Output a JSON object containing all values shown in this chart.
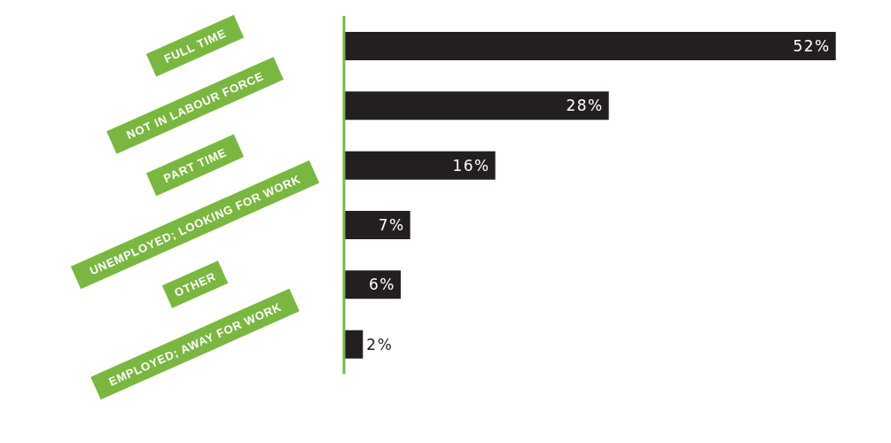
{
  "chart_data": {
    "type": "bar",
    "orientation": "horizontal",
    "categories": [
      "FULL TIME",
      "NOT IN LABOUR FORCE",
      "PART TIME",
      "UNEMPLOYED; LOOKING FOR WORK",
      "OTHER",
      "EMPLOYED; AWAY FOR WORK"
    ],
    "values": [
      52,
      28,
      16,
      7,
      6,
      2
    ],
    "value_labels": [
      "52%",
      "28%",
      "16%",
      "7%",
      "6%",
      "2%"
    ],
    "color": "#231f20",
    "grid": false,
    "legend": false
  }
}
